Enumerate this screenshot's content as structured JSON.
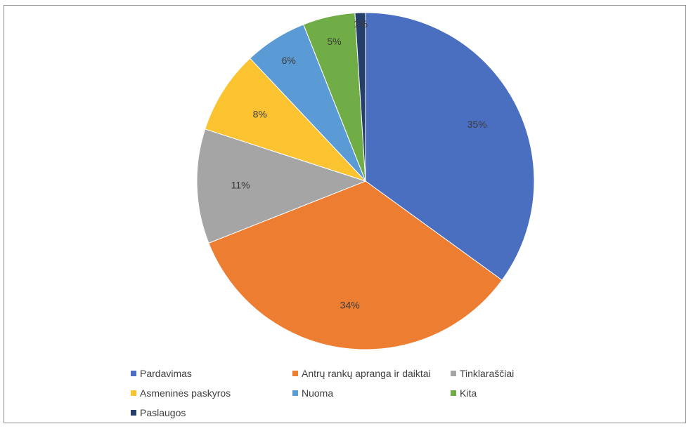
{
  "chart_data": {
    "type": "pie",
    "title": "",
    "slices": [
      {
        "label": "Pardavimas",
        "value": 35,
        "display": "35%",
        "color": "#4a6fc1"
      },
      {
        "label": "Antrų rankų apranga ir daiktai",
        "value": 34,
        "display": "34%",
        "color": "#ed7d31"
      },
      {
        "label": "Tinklaraščiai",
        "value": 11,
        "display": "11%",
        "color": "#a5a5a5"
      },
      {
        "label": "Asmeninės paskyros",
        "value": 8,
        "display": "8%",
        "color": "#fcc331"
      },
      {
        "label": "Nuoma",
        "value": 6,
        "display": "6%",
        "color": "#5b9bd5"
      },
      {
        "label": "Kita",
        "value": 5,
        "display": "5%",
        "color": "#70ad47"
      },
      {
        "label": "Paslaugos",
        "value": 1,
        "display": "1%",
        "color": "#263f6a"
      }
    ],
    "legend_position": "bottom",
    "start_angle": "top, clockwise"
  }
}
